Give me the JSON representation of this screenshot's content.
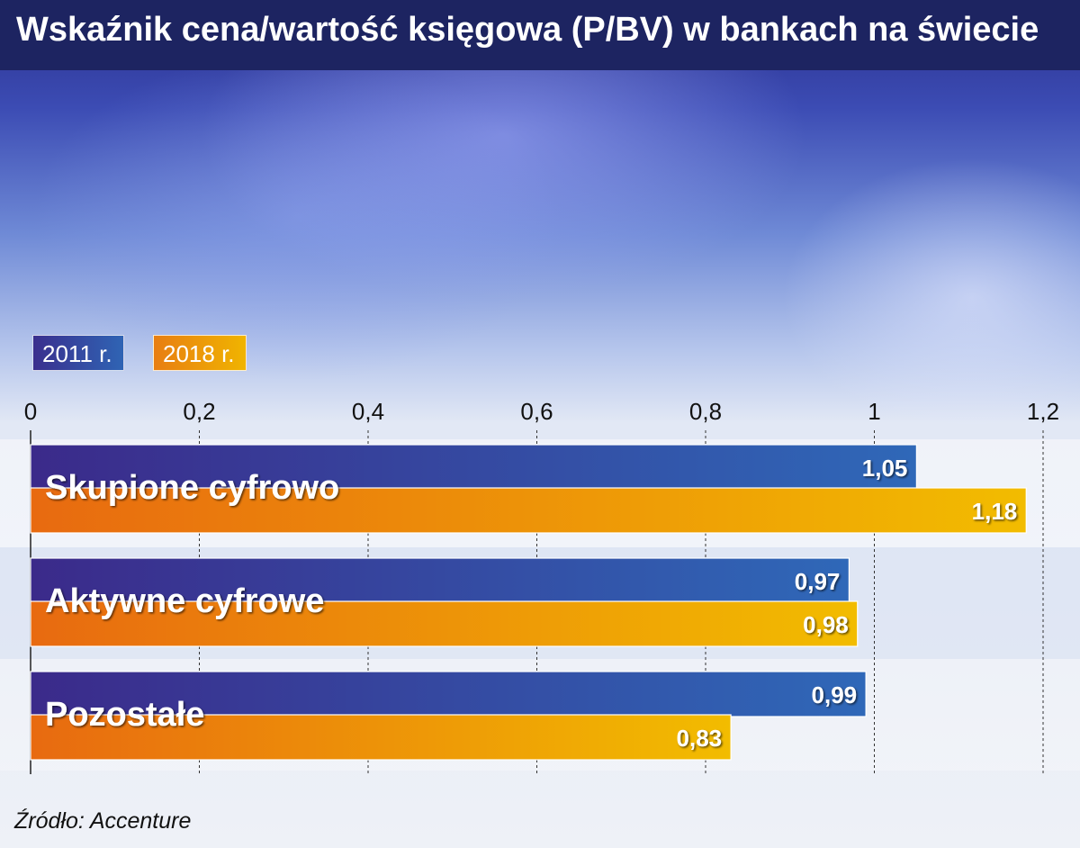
{
  "header": {
    "title": "Wskaźnik cena/wartość księgowa (P/BV) w bankach na świecie"
  },
  "legend": [
    {
      "label": "2011 r.",
      "color": "#2f64b4"
    },
    {
      "label": "2018 r.",
      "color": "#f0b400"
    }
  ],
  "source": "Źródło: Accenture",
  "chart_data": {
    "type": "bar",
    "orientation": "horizontal",
    "title": "Wskaźnik cena/wartość księgowa (P/BV) w bankach na świecie",
    "categories": [
      "Skupione cyfrowo",
      "Aktywne cyfrowe",
      "Pozostałe"
    ],
    "series": [
      {
        "name": "2011 r.",
        "values": [
          1.05,
          0.97,
          0.99
        ],
        "labels": [
          "1,05",
          "0,97",
          "0,99"
        ],
        "color_start": "#3b2a8a",
        "color_end": "#2f68b8"
      },
      {
        "name": "2018 r.",
        "values": [
          1.18,
          0.98,
          0.83
        ],
        "labels": [
          "1,18",
          "0,98",
          "0,83"
        ],
        "color_start": "#e86a10",
        "color_end": "#f2bc00"
      }
    ],
    "xlim": [
      0,
      1.2
    ],
    "xticks": [
      0,
      0.2,
      0.4,
      0.6,
      0.8,
      1,
      1.2
    ],
    "xtick_labels": [
      "0",
      "0,2",
      "0,4",
      "0,6",
      "0,8",
      "1",
      "1,2"
    ],
    "grid": "vertical dashed",
    "legend_position": "top-left",
    "xlabel": "",
    "ylabel": ""
  }
}
